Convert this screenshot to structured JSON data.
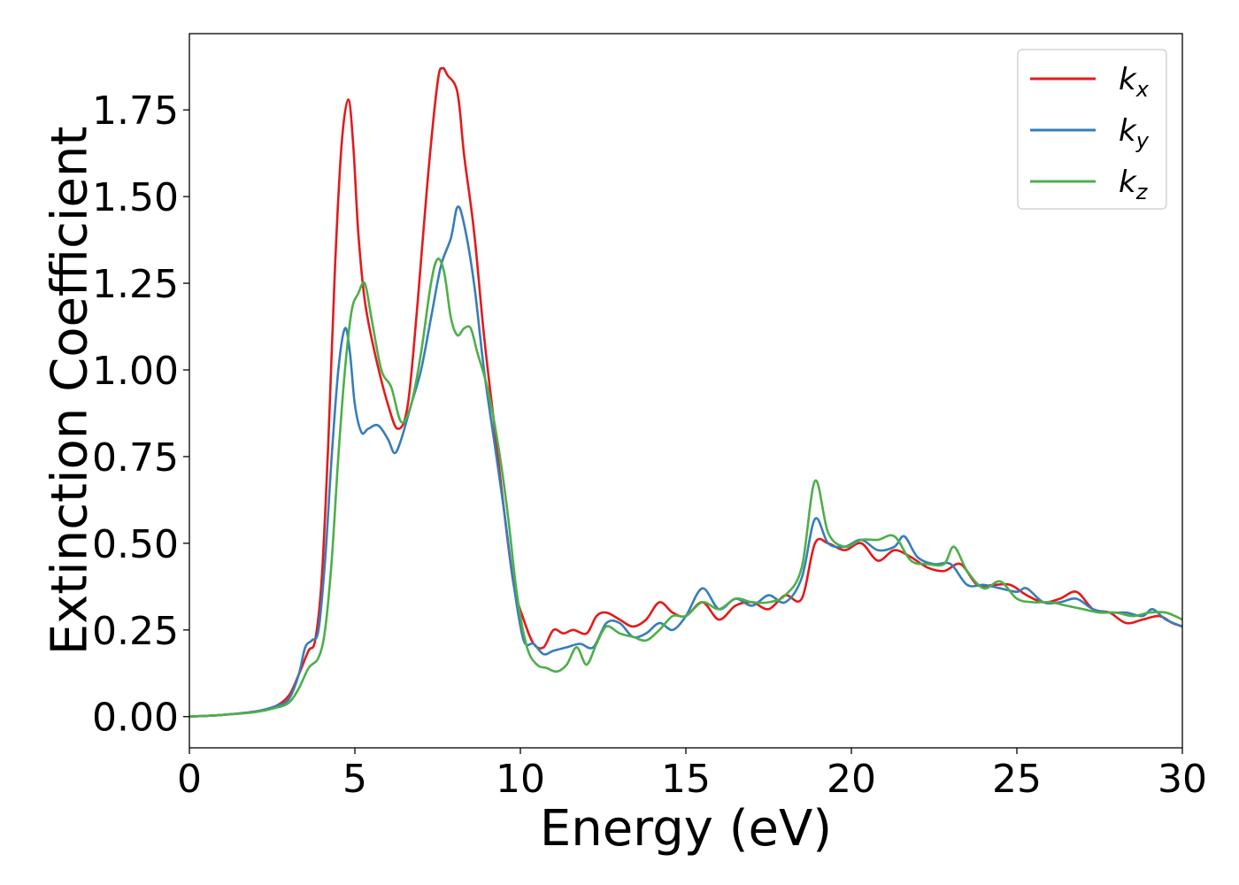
{
  "chart_data": {
    "type": "line",
    "title": "",
    "xlabel": "Energy (eV)",
    "ylabel": "Extinction Coefficient",
    "xlim": [
      0,
      30
    ],
    "ylim": [
      -0.09,
      1.97
    ],
    "xticks": [
      0,
      5,
      10,
      15,
      20,
      25,
      30
    ],
    "xtick_labels": [
      "0",
      "5",
      "10",
      "15",
      "20",
      "25",
      "30"
    ],
    "yticks": [
      0.0,
      0.25,
      0.5,
      0.75,
      1.0,
      1.25,
      1.5,
      1.75
    ],
    "ytick_labels": [
      "0.00",
      "0.25",
      "0.50",
      "0.75",
      "1.00",
      "1.25",
      "1.50",
      "1.75"
    ],
    "grid": false,
    "legend_position": "top-right",
    "series": [
      {
        "name": "k",
        "subscript": "x",
        "color": "#e41a1c",
        "x": [
          0,
          1,
          2,
          2.6,
          3,
          3.3,
          3.6,
          3.8,
          4,
          4.2,
          4.4,
          4.6,
          4.8,
          4.95,
          5.1,
          5.3,
          5.6,
          6,
          6.3,
          6.6,
          6.9,
          7.2,
          7.5,
          7.65,
          7.8,
          8.1,
          8.3,
          8.6,
          8.9,
          9.2,
          9.5,
          9.8,
          10.1,
          10.4,
          10.7,
          11,
          11.3,
          11.6,
          12,
          12.3,
          12.6,
          13,
          13.4,
          13.8,
          14.2,
          14.6,
          15,
          15.5,
          16,
          16.5,
          17,
          17.5,
          18,
          18.5,
          18.9,
          19.3,
          19.8,
          20.3,
          20.8,
          21.3,
          21.8,
          22.3,
          22.8,
          23.3,
          23.8,
          24.3,
          24.8,
          25.3,
          25.8,
          26.3,
          26.8,
          27.3,
          27.8,
          28.3,
          28.8,
          29.3,
          29.7,
          30
        ],
        "y": [
          0,
          0.005,
          0.015,
          0.03,
          0.06,
          0.12,
          0.19,
          0.22,
          0.4,
          0.8,
          1.3,
          1.65,
          1.78,
          1.65,
          1.4,
          1.2,
          1.05,
          0.9,
          0.83,
          0.9,
          1.2,
          1.55,
          1.83,
          1.87,
          1.85,
          1.8,
          1.62,
          1.4,
          1.1,
          0.85,
          0.6,
          0.38,
          0.28,
          0.21,
          0.2,
          0.25,
          0.24,
          0.25,
          0.24,
          0.29,
          0.3,
          0.28,
          0.26,
          0.28,
          0.33,
          0.3,
          0.29,
          0.33,
          0.28,
          0.32,
          0.33,
          0.31,
          0.35,
          0.34,
          0.5,
          0.5,
          0.48,
          0.5,
          0.45,
          0.48,
          0.46,
          0.43,
          0.42,
          0.44,
          0.38,
          0.38,
          0.38,
          0.35,
          0.33,
          0.34,
          0.36,
          0.31,
          0.3,
          0.27,
          0.28,
          0.29,
          0.27,
          0.26
        ]
      },
      {
        "name": "k",
        "subscript": "y",
        "color": "#377eb8",
        "x": [
          0,
          1,
          2,
          2.6,
          3,
          3.3,
          3.5,
          3.7,
          3.9,
          4.1,
          4.3,
          4.5,
          4.7,
          4.85,
          5,
          5.2,
          5.4,
          5.7,
          6,
          6.2,
          6.4,
          6.7,
          7,
          7.3,
          7.6,
          7.9,
          8.1,
          8.3,
          8.6,
          8.9,
          9.2,
          9.5,
          9.8,
          10.1,
          10.4,
          10.7,
          11,
          11.4,
          11.8,
          12.2,
          12.6,
          13,
          13.4,
          13.8,
          14.2,
          14.6,
          15,
          15.5,
          16,
          16.5,
          17,
          17.5,
          18,
          18.5,
          18.9,
          19.3,
          19.8,
          20.3,
          20.8,
          21.3,
          21.6,
          22,
          22.5,
          23,
          23.5,
          24,
          24.5,
          25,
          25.3,
          25.8,
          26.3,
          26.8,
          27.3,
          27.8,
          28.3,
          28.8,
          29.1,
          29.5,
          30
        ],
        "y": [
          0,
          0.005,
          0.015,
          0.03,
          0.05,
          0.12,
          0.2,
          0.22,
          0.25,
          0.45,
          0.75,
          1.0,
          1.12,
          1.05,
          0.9,
          0.82,
          0.83,
          0.84,
          0.8,
          0.76,
          0.8,
          0.9,
          1.0,
          1.15,
          1.3,
          1.38,
          1.47,
          1.42,
          1.25,
          1.0,
          0.8,
          0.6,
          0.38,
          0.22,
          0.21,
          0.18,
          0.19,
          0.2,
          0.21,
          0.2,
          0.27,
          0.27,
          0.23,
          0.24,
          0.27,
          0.25,
          0.29,
          0.37,
          0.31,
          0.34,
          0.32,
          0.35,
          0.33,
          0.4,
          0.57,
          0.5,
          0.49,
          0.51,
          0.48,
          0.49,
          0.52,
          0.46,
          0.44,
          0.44,
          0.38,
          0.38,
          0.37,
          0.36,
          0.37,
          0.33,
          0.33,
          0.34,
          0.31,
          0.3,
          0.3,
          0.29,
          0.31,
          0.28,
          0.26
        ]
      },
      {
        "name": "k",
        "subscript": "z",
        "color": "#4daf4a",
        "x": [
          0,
          1,
          2,
          2.6,
          3,
          3.3,
          3.6,
          3.9,
          4.1,
          4.3,
          4.5,
          4.7,
          4.9,
          5.1,
          5.3,
          5.5,
          5.8,
          6.1,
          6.4,
          6.7,
          7,
          7.3,
          7.5,
          7.7,
          7.9,
          8.1,
          8.3,
          8.5,
          8.7,
          9,
          9.3,
          9.6,
          9.9,
          10.2,
          10.5,
          10.8,
          11.1,
          11.4,
          11.7,
          12,
          12.3,
          12.6,
          13,
          13.4,
          13.8,
          14.2,
          14.6,
          15,
          15.5,
          16,
          16.5,
          17,
          17.5,
          18,
          18.5,
          18.9,
          19.3,
          19.8,
          20.3,
          20.8,
          21.3,
          21.8,
          22.3,
          22.8,
          23.1,
          23.5,
          24,
          24.5,
          25,
          25.5,
          26,
          26.5,
          27,
          27.5,
          28,
          28.5,
          29,
          29.5,
          30
        ],
        "y": [
          0,
          0.005,
          0.013,
          0.025,
          0.04,
          0.08,
          0.14,
          0.17,
          0.25,
          0.45,
          0.75,
          1.0,
          1.17,
          1.22,
          1.25,
          1.15,
          1.0,
          0.95,
          0.85,
          0.9,
          1.05,
          1.25,
          1.32,
          1.28,
          1.15,
          1.1,
          1.12,
          1.12,
          1.05,
          0.95,
          0.8,
          0.6,
          0.35,
          0.2,
          0.15,
          0.14,
          0.13,
          0.15,
          0.2,
          0.15,
          0.21,
          0.26,
          0.24,
          0.23,
          0.22,
          0.25,
          0.29,
          0.29,
          0.33,
          0.31,
          0.34,
          0.33,
          0.33,
          0.35,
          0.43,
          0.68,
          0.53,
          0.49,
          0.51,
          0.51,
          0.52,
          0.45,
          0.44,
          0.44,
          0.49,
          0.42,
          0.37,
          0.39,
          0.34,
          0.33,
          0.33,
          0.32,
          0.31,
          0.3,
          0.3,
          0.29,
          0.3,
          0.3,
          0.28
        ]
      }
    ]
  }
}
